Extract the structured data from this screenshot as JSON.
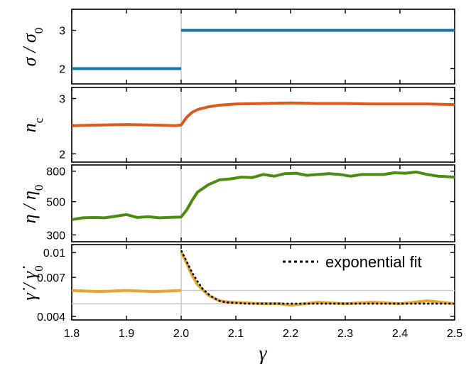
{
  "chart_data": {
    "type": "line",
    "xlabel": "γ",
    "xlim": [
      1.8,
      2.5
    ],
    "xticks": [
      1.8,
      1.9,
      2.0,
      2.1,
      2.2,
      2.3,
      2.4,
      2.5
    ],
    "xtick_labels": [
      "1.8",
      "1.9",
      "2.0",
      "2.1",
      "2.2",
      "2.3",
      "2.4",
      "2.5"
    ],
    "grid": false,
    "vertical_reference_x": 2.0,
    "panels": [
      {
        "id": "sigma",
        "ylabel_main": "σ / σ",
        "ylabel_sub": "0",
        "ylim": [
          1.6,
          3.55
        ],
        "yscale": "linear",
        "yticks": [
          2,
          3
        ],
        "ytick_labels": [
          "2",
          "3"
        ],
        "color": "#1279a6",
        "series": [
          {
            "x": [
              1.8,
              2.0
            ],
            "y": [
              2,
              2
            ]
          },
          {
            "x": [
              2.0,
              2.5
            ],
            "y": [
              3,
              3
            ]
          }
        ]
      },
      {
        "id": "nc",
        "ylabel_main": "n",
        "ylabel_sub": "c",
        "ylim": [
          1.85,
          3.2
        ],
        "yscale": "linear",
        "yticks": [
          2,
          3
        ],
        "ytick_labels": [
          "2",
          "3"
        ],
        "color": "#de5a1a",
        "series": [
          {
            "x": [
              1.8,
              1.85,
              1.9,
              1.95,
              1.99,
              2.0,
              2.01,
              2.02,
              2.03,
              2.05,
              2.07,
              2.1,
              2.15,
              2.2,
              2.25,
              2.3,
              2.35,
              2.4,
              2.45,
              2.5
            ],
            "y": [
              2.51,
              2.52,
              2.53,
              2.52,
              2.51,
              2.52,
              2.66,
              2.75,
              2.8,
              2.85,
              2.88,
              2.9,
              2.91,
              2.92,
              2.91,
              2.91,
              2.9,
              2.9,
              2.9,
              2.89
            ]
          }
        ]
      },
      {
        "id": "eta",
        "ylabel_main": "η / η",
        "ylabel_sub": "0",
        "ylim": [
          270,
          880
        ],
        "yscale": "log",
        "yticks": [
          300,
          500,
          800
        ],
        "ytick_labels": [
          "300",
          "500",
          "800"
        ],
        "color": "#4c8c12",
        "series": [
          {
            "x": [
              1.8,
              1.82,
              1.84,
              1.86,
              1.88,
              1.9,
              1.92,
              1.94,
              1.96,
              1.98,
              2.0,
              2.01,
              2.02,
              2.03,
              2.05,
              2.07,
              2.09,
              2.11,
              2.13,
              2.15,
              2.17,
              2.19,
              2.21,
              2.23,
              2.25,
              2.27,
              2.29,
              2.31,
              2.33,
              2.35,
              2.37,
              2.39,
              2.41,
              2.43,
              2.45,
              2.47,
              2.5
            ],
            "y": [
              380,
              390,
              392,
              390,
              400,
              410,
              392,
              397,
              390,
              393,
              395,
              440,
              510,
              580,
              650,
              700,
              710,
              730,
              725,
              760,
              740,
              770,
              775,
              750,
              760,
              770,
              760,
              740,
              760,
              760,
              760,
              780,
              775,
              790,
              760,
              740,
              730
            ]
          }
        ]
      },
      {
        "id": "gammadot",
        "ylabel_main": "γ̇ / γ̇",
        "ylabel_sub": "0",
        "ylim": [
          0.0038,
          0.0112
        ],
        "yscale": "log",
        "yticks": [
          0.004,
          0.007,
          0.01
        ],
        "ytick_labels": [
          "0.004",
          "0.007",
          "0.01"
        ],
        "color": "#e4a532",
        "reference_lines_y": [
          0.0058,
          0.0048
        ],
        "series": [
          {
            "x": [
              1.8,
              1.85,
              1.9,
              1.95,
              2.0
            ],
            "y": [
              0.0058,
              0.0057,
              0.0058,
              0.0057,
              0.0058
            ]
          },
          {
            "x": [
              2.0,
              2.01,
              2.02,
              2.03,
              2.05,
              2.07,
              2.09,
              2.12,
              2.15,
              2.18,
              2.2,
              2.25,
              2.3,
              2.35,
              2.4,
              2.45,
              2.5
            ],
            "y": [
              0.0101,
              0.0086,
              0.0072,
              0.0063,
              0.0054,
              0.005,
              0.0049,
              0.00485,
              0.0048,
              0.0048,
              0.0047,
              0.0049,
              0.0048,
              0.0049,
              0.0048,
              0.005,
              0.0048
            ]
          }
        ],
        "fit": {
          "label": "exponential fit",
          "style": "dotted",
          "color": "#000000",
          "x": [
            2.0,
            2.01,
            2.02,
            2.03,
            2.04,
            2.05,
            2.06,
            2.07,
            2.08,
            2.1,
            2.12,
            2.15,
            2.2,
            2.3,
            2.4,
            2.5
          ],
          "y": [
            0.0103,
            0.0088,
            0.0075,
            0.0066,
            0.0059,
            0.0055,
            0.0052,
            0.005,
            0.0049,
            0.00485,
            0.0048,
            0.0048,
            0.0048,
            0.0048,
            0.0048,
            0.0048
          ]
        },
        "legend_position": "top-right"
      }
    ]
  }
}
